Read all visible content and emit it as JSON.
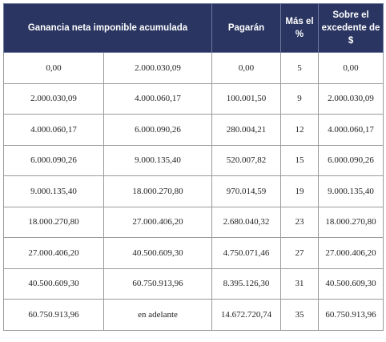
{
  "table": {
    "headers": {
      "ganancia": "Ganancia neta imponible acumulada",
      "pagaran": "Pagarán",
      "mas_el": "Más el %",
      "sobre_el": "Sobre el excedente de $"
    },
    "rows": [
      [
        "0,00",
        "2.000.030,09",
        "0,00",
        "5",
        "0,00"
      ],
      [
        "2.000.030,09",
        "4.000.060,17",
        "100.001,50",
        "9",
        "2.000.030,09"
      ],
      [
        "4.000.060,17",
        "6.000.090,26",
        "280.004,21",
        "12",
        "4.000.060,17"
      ],
      [
        "6.000.090,26",
        "9.000.135,40",
        "520.007,82",
        "15",
        "6.000.090,26"
      ],
      [
        "9.000.135,40",
        "18.000.270,80",
        "970.014,59",
        "19",
        "9.000.135,40"
      ],
      [
        "18.000.270,80",
        "27.000.406,20",
        "2.680.040,32",
        "23",
        "18.000.270,80"
      ],
      [
        "27.000.406,20",
        "40.500.609,30",
        "4.750.071,46",
        "27",
        "27.000.406,20"
      ],
      [
        "40.500.609,30",
        "60.750.913,96",
        "8.395.126,30",
        "31",
        "40.500.609,30"
      ],
      [
        "60.750.913,96",
        "en adelante",
        "14.672.720,74",
        "35",
        "60.750.913,96"
      ]
    ]
  },
  "colors": {
    "header_bg": "#2a3561",
    "header_text": "#ffffff"
  }
}
